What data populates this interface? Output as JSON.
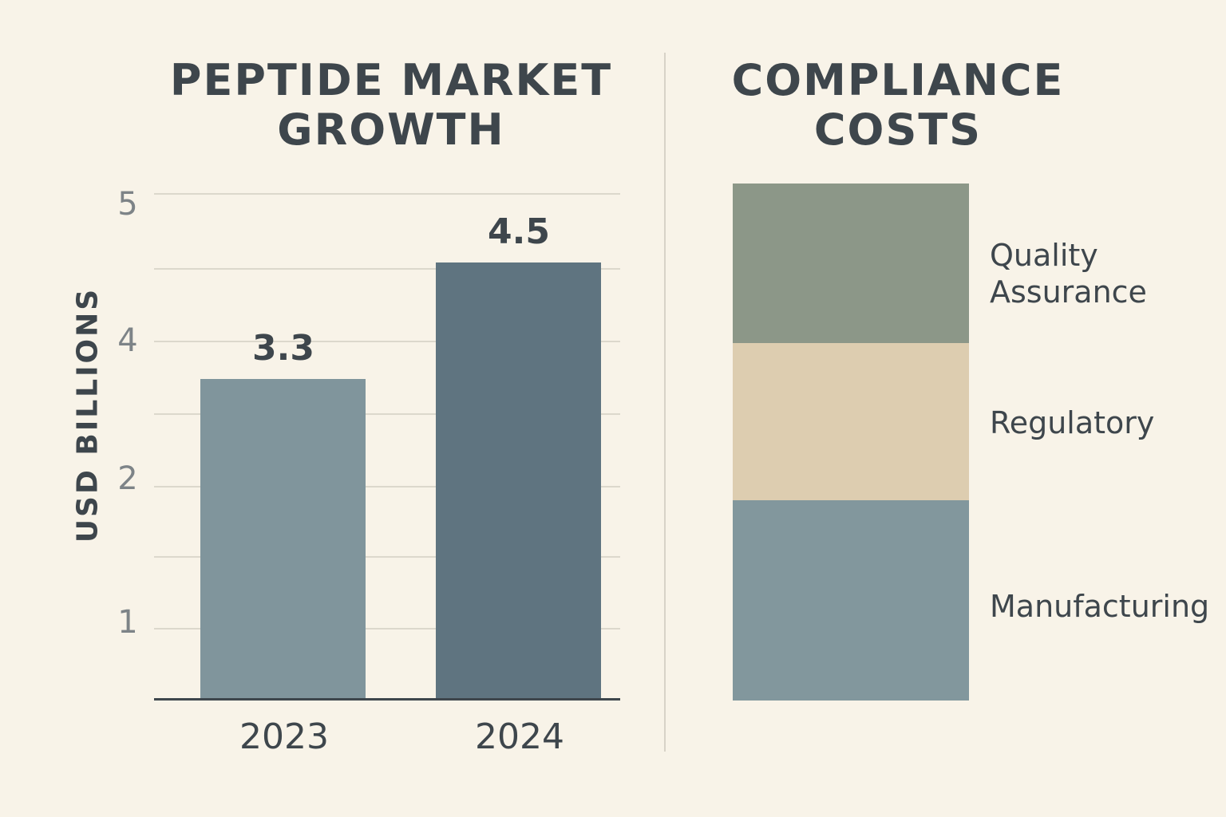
{
  "chart_data": [
    {
      "type": "bar",
      "title": "PEPTIDE MARKET GROWTH",
      "ylabel": "USD BILLIONS",
      "xlabel": "",
      "categories": [
        "2023",
        "2024"
      ],
      "values": [
        3.3,
        4.5
      ],
      "data_labels": [
        "3.3",
        "4.5"
      ],
      "y_tick_labels": [
        "5",
        "4",
        "2",
        "1"
      ],
      "colors": [
        "#80959c",
        "#5f7480"
      ],
      "grid": true
    },
    {
      "type": "bar",
      "stacked": true,
      "title": "COMPLIANCE COSTS",
      "segments": [
        {
          "label": "Quality Assurance",
          "color": "#8c9788"
        },
        {
          "label": "Regulatory",
          "color": "#ddcdb0"
        },
        {
          "label": "Manufacturing",
          "color": "#82979d"
        }
      ]
    }
  ]
}
